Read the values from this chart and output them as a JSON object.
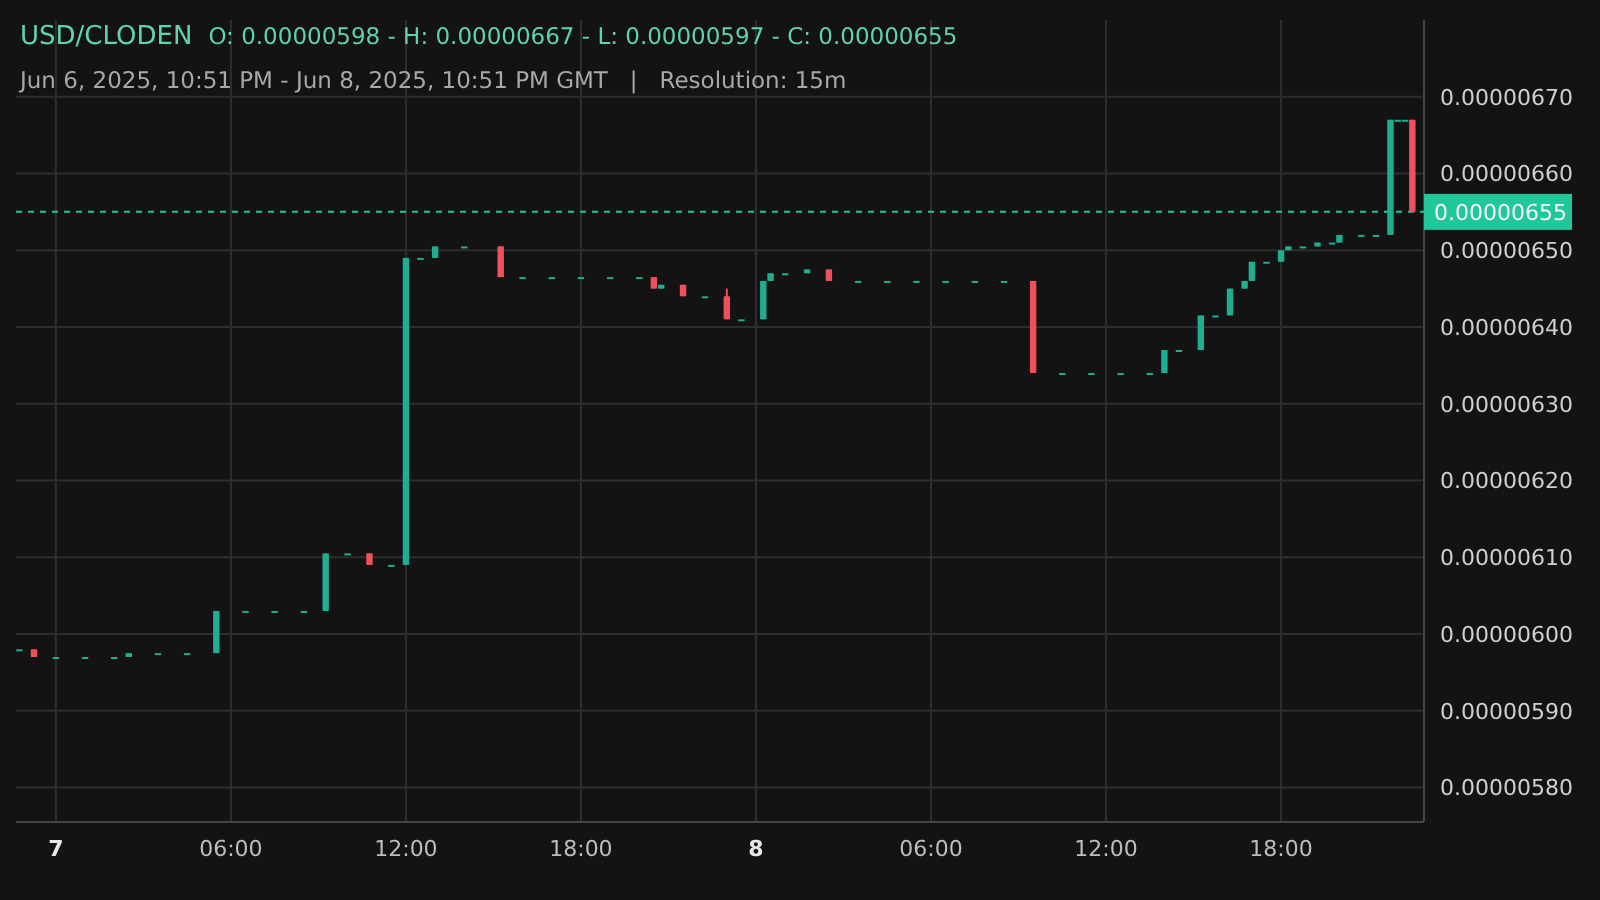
{
  "chart_data": {
    "type": "candlestick",
    "title": "USD/CLODEN",
    "subtitle": "Jun 6, 2025, 10:51 PM - Jun 8, 2025, 10:51 PM GMT   |   Resolution: 15m",
    "annotations": [
      "O: 0.00000598 - H: 0.00000667 - L: 0.00000597 - C: 0.00000655"
    ],
    "x": [
      "2025-06-06T22:45",
      "2025-06-06T23:15",
      "2025-06-07T00:00",
      "2025-06-07T01:00",
      "2025-06-07T02:00",
      "2025-06-07T02:30",
      "2025-06-07T03:30",
      "2025-06-07T04:30",
      "2025-06-07T05:30",
      "2025-06-07T06:30",
      "2025-06-07T07:30",
      "2025-06-07T08:30",
      "2025-06-07T09:15",
      "2025-06-07T10:00",
      "2025-06-07T10:45",
      "2025-06-07T11:30",
      "2025-06-07T12:00",
      "2025-06-07T12:30",
      "2025-06-07T13:00",
      "2025-06-07T14:00",
      "2025-06-07T15:15",
      "2025-06-07T16:00",
      "2025-06-07T17:00",
      "2025-06-07T18:00",
      "2025-06-07T19:00",
      "2025-06-07T20:00",
      "2025-06-07T20:30",
      "2025-06-07T20:45",
      "2025-06-07T21:30",
      "2025-06-07T22:15",
      "2025-06-07T23:00",
      "2025-06-07T23:30",
      "2025-06-08T00:15",
      "2025-06-08T00:30",
      "2025-06-08T01:00",
      "2025-06-08T01:45",
      "2025-06-08T02:30",
      "2025-06-08T03:30",
      "2025-06-08T04:30",
      "2025-06-08T05:30",
      "2025-06-08T06:30",
      "2025-06-08T07:30",
      "2025-06-08T08:30",
      "2025-06-08T09:30",
      "2025-06-08T10:30",
      "2025-06-08T11:30",
      "2025-06-08T12:30",
      "2025-06-08T13:30",
      "2025-06-08T14:00",
      "2025-06-08T14:30",
      "2025-06-08T15:15",
      "2025-06-08T15:45",
      "2025-06-08T16:15",
      "2025-06-08T16:45",
      "2025-06-08T17:00",
      "2025-06-08T17:30",
      "2025-06-08T18:00",
      "2025-06-08T18:15",
      "2025-06-08T18:45",
      "2025-06-08T19:15",
      "2025-06-08T19:45",
      "2025-06-08T20:00",
      "2025-06-08T20:45",
      "2025-06-08T21:15",
      "2025-06-08T21:45",
      "2025-06-08T22:00",
      "2025-06-08T22:15",
      "2025-06-08T22:30"
    ],
    "ohlc": [
      [
        5.98e-06,
        5.98e-06,
        5.98e-06,
        5.98e-06
      ],
      [
        5.98e-06,
        5.98e-06,
        5.97e-06,
        5.97e-06
      ],
      [
        5.97e-06,
        5.97e-06,
        5.97e-06,
        5.97e-06
      ],
      [
        5.97e-06,
        5.97e-06,
        5.97e-06,
        5.97e-06
      ],
      [
        5.97e-06,
        5.97e-06,
        5.97e-06,
        5.97e-06
      ],
      [
        5.97e-06,
        5.975e-06,
        5.97e-06,
        5.975e-06
      ],
      [
        5.975e-06,
        5.975e-06,
        5.975e-06,
        5.975e-06
      ],
      [
        5.975e-06,
        5.975e-06,
        5.975e-06,
        5.975e-06
      ],
      [
        5.975e-06,
        6.03e-06,
        5.975e-06,
        6.03e-06
      ],
      [
        6.03e-06,
        6.03e-06,
        6.03e-06,
        6.03e-06
      ],
      [
        6.03e-06,
        6.03e-06,
        6.03e-06,
        6.03e-06
      ],
      [
        6.03e-06,
        6.03e-06,
        6.03e-06,
        6.03e-06
      ],
      [
        6.03e-06,
        6.105e-06,
        6.03e-06,
        6.105e-06
      ],
      [
        6.105e-06,
        6.105e-06,
        6.105e-06,
        6.105e-06
      ],
      [
        6.105e-06,
        6.105e-06,
        6.09e-06,
        6.09e-06
      ],
      [
        6.09e-06,
        6.09e-06,
        6.09e-06,
        6.09e-06
      ],
      [
        6.09e-06,
        6.49e-06,
        6.09e-06,
        6.49e-06
      ],
      [
        6.49e-06,
        6.49e-06,
        6.49e-06,
        6.49e-06
      ],
      [
        6.49e-06,
        6.505e-06,
        6.49e-06,
        6.505e-06
      ],
      [
        6.505e-06,
        6.505e-06,
        6.505e-06,
        6.505e-06
      ],
      [
        6.505e-06,
        6.505e-06,
        6.465e-06,
        6.465e-06
      ],
      [
        6.465e-06,
        6.465e-06,
        6.465e-06,
        6.465e-06
      ],
      [
        6.465e-06,
        6.465e-06,
        6.465e-06,
        6.465e-06
      ],
      [
        6.465e-06,
        6.465e-06,
        6.465e-06,
        6.465e-06
      ],
      [
        6.465e-06,
        6.465e-06,
        6.465e-06,
        6.465e-06
      ],
      [
        6.465e-06,
        6.465e-06,
        6.465e-06,
        6.465e-06
      ],
      [
        6.465e-06,
        6.465e-06,
        6.45e-06,
        6.45e-06
      ],
      [
        6.45e-06,
        6.455e-06,
        6.45e-06,
        6.455e-06
      ],
      [
        6.455e-06,
        6.455e-06,
        6.44e-06,
        6.44e-06
      ],
      [
        6.44e-06,
        6.44e-06,
        6.44e-06,
        6.44e-06
      ],
      [
        6.44e-06,
        6.45e-06,
        6.41e-06,
        6.41e-06
      ],
      [
        6.41e-06,
        6.41e-06,
        6.41e-06,
        6.41e-06
      ],
      [
        6.41e-06,
        6.46e-06,
        6.41e-06,
        6.46e-06
      ],
      [
        6.46e-06,
        6.47e-06,
        6.46e-06,
        6.47e-06
      ],
      [
        6.47e-06,
        6.47e-06,
        6.47e-06,
        6.47e-06
      ],
      [
        6.47e-06,
        6.475e-06,
        6.47e-06,
        6.475e-06
      ],
      [
        6.475e-06,
        6.475e-06,
        6.46e-06,
        6.46e-06
      ],
      [
        6.46e-06,
        6.46e-06,
        6.46e-06,
        6.46e-06
      ],
      [
        6.46e-06,
        6.46e-06,
        6.46e-06,
        6.46e-06
      ],
      [
        6.46e-06,
        6.46e-06,
        6.46e-06,
        6.46e-06
      ],
      [
        6.46e-06,
        6.46e-06,
        6.46e-06,
        6.46e-06
      ],
      [
        6.46e-06,
        6.46e-06,
        6.46e-06,
        6.46e-06
      ],
      [
        6.46e-06,
        6.46e-06,
        6.46e-06,
        6.46e-06
      ],
      [
        6.46e-06,
        6.46e-06,
        6.34e-06,
        6.34e-06
      ],
      [
        6.34e-06,
        6.34e-06,
        6.34e-06,
        6.34e-06
      ],
      [
        6.34e-06,
        6.34e-06,
        6.34e-06,
        6.34e-06
      ],
      [
        6.34e-06,
        6.34e-06,
        6.34e-06,
        6.34e-06
      ],
      [
        6.34e-06,
        6.34e-06,
        6.34e-06,
        6.34e-06
      ],
      [
        6.34e-06,
        6.37e-06,
        6.34e-06,
        6.37e-06
      ],
      [
        6.37e-06,
        6.37e-06,
        6.37e-06,
        6.37e-06
      ],
      [
        6.37e-06,
        6.415e-06,
        6.37e-06,
        6.415e-06
      ],
      [
        6.415e-06,
        6.415e-06,
        6.415e-06,
        6.415e-06
      ],
      [
        6.415e-06,
        6.45e-06,
        6.415e-06,
        6.45e-06
      ],
      [
        6.45e-06,
        6.46e-06,
        6.45e-06,
        6.46e-06
      ],
      [
        6.46e-06,
        6.485e-06,
        6.46e-06,
        6.485e-06
      ],
      [
        6.485e-06,
        6.485e-06,
        6.485e-06,
        6.485e-06
      ],
      [
        6.485e-06,
        6.5e-06,
        6.485e-06,
        6.5e-06
      ],
      [
        6.5e-06,
        6.505e-06,
        6.5e-06,
        6.505e-06
      ],
      [
        6.505e-06,
        6.505e-06,
        6.505e-06,
        6.505e-06
      ],
      [
        6.505e-06,
        6.51e-06,
        6.505e-06,
        6.51e-06
      ],
      [
        6.51e-06,
        6.51e-06,
        6.51e-06,
        6.51e-06
      ],
      [
        6.51e-06,
        6.52e-06,
        6.51e-06,
        6.52e-06
      ],
      [
        6.52e-06,
        6.52e-06,
        6.52e-06,
        6.52e-06
      ],
      [
        6.52e-06,
        6.52e-06,
        6.52e-06,
        6.52e-06
      ],
      [
        6.52e-06,
        6.67e-06,
        6.52e-06,
        6.67e-06
      ],
      [
        6.67e-06,
        6.67e-06,
        6.67e-06,
        6.67e-06
      ],
      [
        6.67e-06,
        6.67e-06,
        6.67e-06,
        6.67e-06
      ],
      [
        6.67e-06,
        6.67e-06,
        6.55e-06,
        6.55e-06
      ]
    ],
    "colors": [
      "#1fae91",
      "#f0505a",
      "#1fae91",
      "#1fae91",
      "#1fae91",
      "#1fae91",
      "#1fae91",
      "#1fae91",
      "#1fae91",
      "#1fae91",
      "#1fae91",
      "#1fae91",
      "#1fae91",
      "#1fae91",
      "#f0505a",
      "#1fae91",
      "#1fae91",
      "#1fae91",
      "#1fae91",
      "#1fae91",
      "#f0505a",
      "#1fae91",
      "#1fae91",
      "#1fae91",
      "#1fae91",
      "#1fae91",
      "#f0505a",
      "#1fae91",
      "#f0505a",
      "#1fae91",
      "#f0505a",
      "#1fae91",
      "#1fae91",
      "#1fae91",
      "#1fae91",
      "#1fae91",
      "#f0505a",
      "#1fae91",
      "#1fae91",
      "#1fae91",
      "#1fae91",
      "#1fae91",
      "#1fae91",
      "#f0505a",
      "#1fae91",
      "#1fae91",
      "#1fae91",
      "#1fae91",
      "#1fae91",
      "#1fae91",
      "#1fae91",
      "#1fae91",
      "#1fae91",
      "#1fae91",
      "#1fae91",
      "#1fae91",
      "#1fae91",
      "#1fae91",
      "#1fae91",
      "#1fae91",
      "#1fae91",
      "#1fae91",
      "#1fae91",
      "#1fae91",
      "#1fae91",
      "#1fae91",
      "#1fae91",
      "#f0505a"
    ],
    "xlim": [
      "2025-06-06T22:38",
      "2025-06-08T22:54"
    ],
    "xticks": [
      {
        "value": "2025-06-07T00:00",
        "label": "7"
      },
      {
        "value": "2025-06-07T06:00",
        "label": "06:00"
      },
      {
        "value": "2025-06-07T12:00",
        "label": "12:00"
      },
      {
        "value": "2025-06-07T18:00",
        "label": "18:00"
      },
      {
        "value": "2025-06-08T00:00",
        "label": "8"
      },
      {
        "value": "2025-06-08T06:00",
        "label": "06:00"
      },
      {
        "value": "2025-06-08T12:00",
        "label": "12:00"
      },
      {
        "value": "2025-06-08T18:00",
        "label": "18:00"
      }
    ],
    "ylim": [
      5.755e-06,
      6.8e-06
    ],
    "yticks": [
      {
        "value": 5.8e-06,
        "label": "0.00000580"
      },
      {
        "value": 5.9e-06,
        "label": "0.00000590"
      },
      {
        "value": 6e-06,
        "label": "0.00000600"
      },
      {
        "value": 6.1e-06,
        "label": "0.00000610"
      },
      {
        "value": 6.2e-06,
        "label": "0.00000620"
      },
      {
        "value": 6.3e-06,
        "label": "0.00000630"
      },
      {
        "value": 6.4e-06,
        "label": "0.00000640"
      },
      {
        "value": 6.5e-06,
        "label": "0.00000650"
      },
      {
        "value": 6.6e-06,
        "label": "0.00000660"
      },
      {
        "value": 6.7e-06,
        "label": "0.00000670"
      }
    ],
    "ref_lines": [
      {
        "axis": "y",
        "value": 6.55e-06,
        "label": "0.00000655",
        "color": "#1fc79a",
        "line_style": "dashed"
      }
    ],
    "grid": true
  }
}
